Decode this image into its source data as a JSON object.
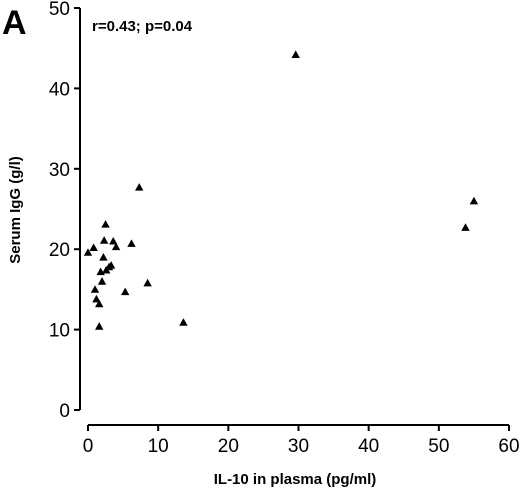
{
  "panel_label": "A",
  "chart_data": {
    "type": "scatter",
    "annotation": "r=0.43; p=0.04",
    "xlabel": "IL-10 in plasma (pg/ml)",
    "ylabel": "Serum IgG (g/l)",
    "xlim": [
      0,
      60
    ],
    "ylim": [
      0,
      50
    ],
    "xticks": [
      0,
      10,
      20,
      30,
      40,
      50,
      60
    ],
    "yticks": [
      0,
      10,
      20,
      30,
      40,
      50
    ],
    "grid": false,
    "marker": "triangle",
    "points": [
      {
        "x": 0.0,
        "y": 19.6
      },
      {
        "x": 0.8,
        "y": 20.2
      },
      {
        "x": 1.0,
        "y": 15.0
      },
      {
        "x": 1.2,
        "y": 13.8
      },
      {
        "x": 1.6,
        "y": 13.2
      },
      {
        "x": 1.6,
        "y": 10.4
      },
      {
        "x": 1.8,
        "y": 17.2
      },
      {
        "x": 2.0,
        "y": 16.0
      },
      {
        "x": 2.2,
        "y": 19.0
      },
      {
        "x": 2.3,
        "y": 21.1
      },
      {
        "x": 2.5,
        "y": 23.1
      },
      {
        "x": 2.6,
        "y": 17.4
      },
      {
        "x": 3.0,
        "y": 17.8
      },
      {
        "x": 3.3,
        "y": 18.0
      },
      {
        "x": 3.6,
        "y": 21.0
      },
      {
        "x": 4.0,
        "y": 20.3
      },
      {
        "x": 5.3,
        "y": 14.7
      },
      {
        "x": 6.2,
        "y": 20.7
      },
      {
        "x": 7.3,
        "y": 27.7
      },
      {
        "x": 8.5,
        "y": 15.8
      },
      {
        "x": 13.6,
        "y": 10.9
      },
      {
        "x": 29.6,
        "y": 44.2
      },
      {
        "x": 53.8,
        "y": 22.7
      },
      {
        "x": 55.0,
        "y": 26.0
      }
    ]
  }
}
